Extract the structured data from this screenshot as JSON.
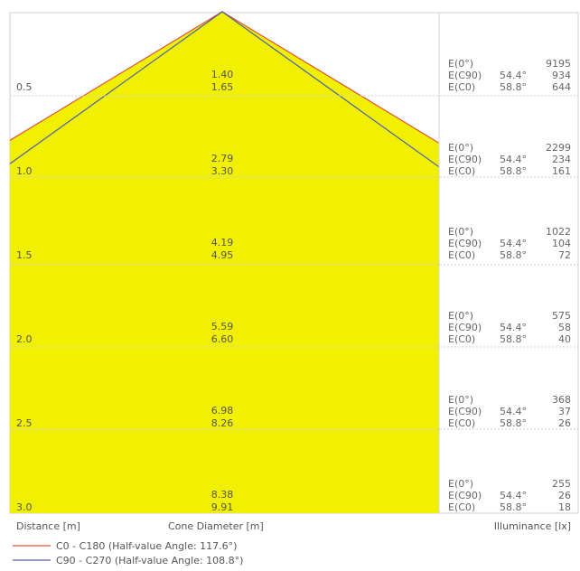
{
  "chart_data": {
    "type": "area",
    "distance_label": "Distance [m]",
    "diameter_label": "Cone Diameter [m]",
    "illuminance_label": "Illuminance [lx]",
    "legend": [
      {
        "label": "C0 - C180 (Half-value Angle: 117.6°)",
        "color": "#e0533a"
      },
      {
        "label": "C90 - C270 (Half-value Angle: 108.8°)",
        "color": "#4a5fb0"
      }
    ],
    "fill_color": "#f0f000",
    "e0_label": "E(0°)",
    "ec90_label": "E(C90)",
    "ec0_label": "E(C0)",
    "ec90_angle": "54.4°",
    "ec0_angle": "58.8°",
    "rows": [
      {
        "distance": "0.5",
        "d_c90": "1.40",
        "d_c0": "1.65",
        "e0": 9195,
        "ec90": 934,
        "ec0": 644
      },
      {
        "distance": "1.0",
        "d_c90": "2.79",
        "d_c0": "3.30",
        "e0": 2299,
        "ec90": 234,
        "ec0": 161
      },
      {
        "distance": "1.5",
        "d_c90": "4.19",
        "d_c0": "4.95",
        "e0": 1022,
        "ec90": 104,
        "ec0": 72
      },
      {
        "distance": "2.0",
        "d_c90": "5.59",
        "d_c0": "6.60",
        "e0": 575,
        "ec90": 58,
        "ec0": 40
      },
      {
        "distance": "2.5",
        "d_c90": "6.98",
        "d_c0": "8.26",
        "e0": 368,
        "ec90": 37,
        "ec0": 26
      },
      {
        "distance": "3.0",
        "d_c90": "8.38",
        "d_c0": "9.91",
        "e0": 255,
        "ec90": 26,
        "ec0": 18
      }
    ]
  }
}
